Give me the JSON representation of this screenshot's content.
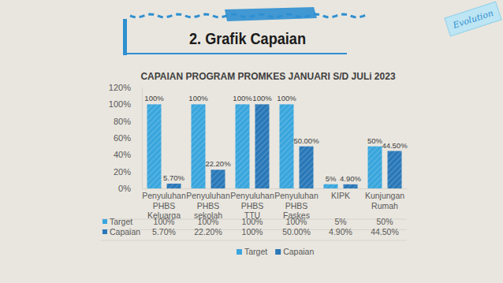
{
  "page": {
    "heading": "2. Grafik Capaian",
    "badge": "Evolution"
  },
  "chart_data": {
    "type": "bar",
    "title": "CAPAIAN PROGRAM PROMKES JANUARI S/D JULi 2023",
    "categories": [
      "Penyuluhan PHBS Keluarga",
      "Penyuluhan PHBS sekolah",
      "Penyuluhan PHBS TTU",
      "Penyuluhan PHBS Faskes",
      "KIPK",
      "Kunjungan Rumah"
    ],
    "series": [
      {
        "name": "Target",
        "color": "#3aa6dd",
        "values": [
          100,
          100,
          100,
          100,
          5,
          50
        ],
        "value_labels": [
          "100%",
          "100%",
          "100%",
          "100%",
          "5%",
          "50%"
        ]
      },
      {
        "name": "Capaian",
        "color": "#2a78b8",
        "values": [
          5.7,
          22.2,
          100,
          50,
          4.9,
          44.5
        ],
        "value_labels": [
          "5.70%",
          "22.20%",
          "100%",
          "50.00%",
          "4.90%",
          "44.50%"
        ]
      }
    ],
    "ylim": [
      0,
      120
    ],
    "yticks": [
      {
        "value": 0,
        "label": "0%"
      },
      {
        "value": 20,
        "label": "20%"
      },
      {
        "value": 40,
        "label": "40%"
      },
      {
        "value": 60,
        "label": "60%"
      },
      {
        "value": 80,
        "label": "80%"
      },
      {
        "value": 100,
        "label": "100%"
      },
      {
        "value": 120,
        "label": "120%"
      }
    ],
    "grid": false,
    "legend": "bottom",
    "data_labels": true
  }
}
